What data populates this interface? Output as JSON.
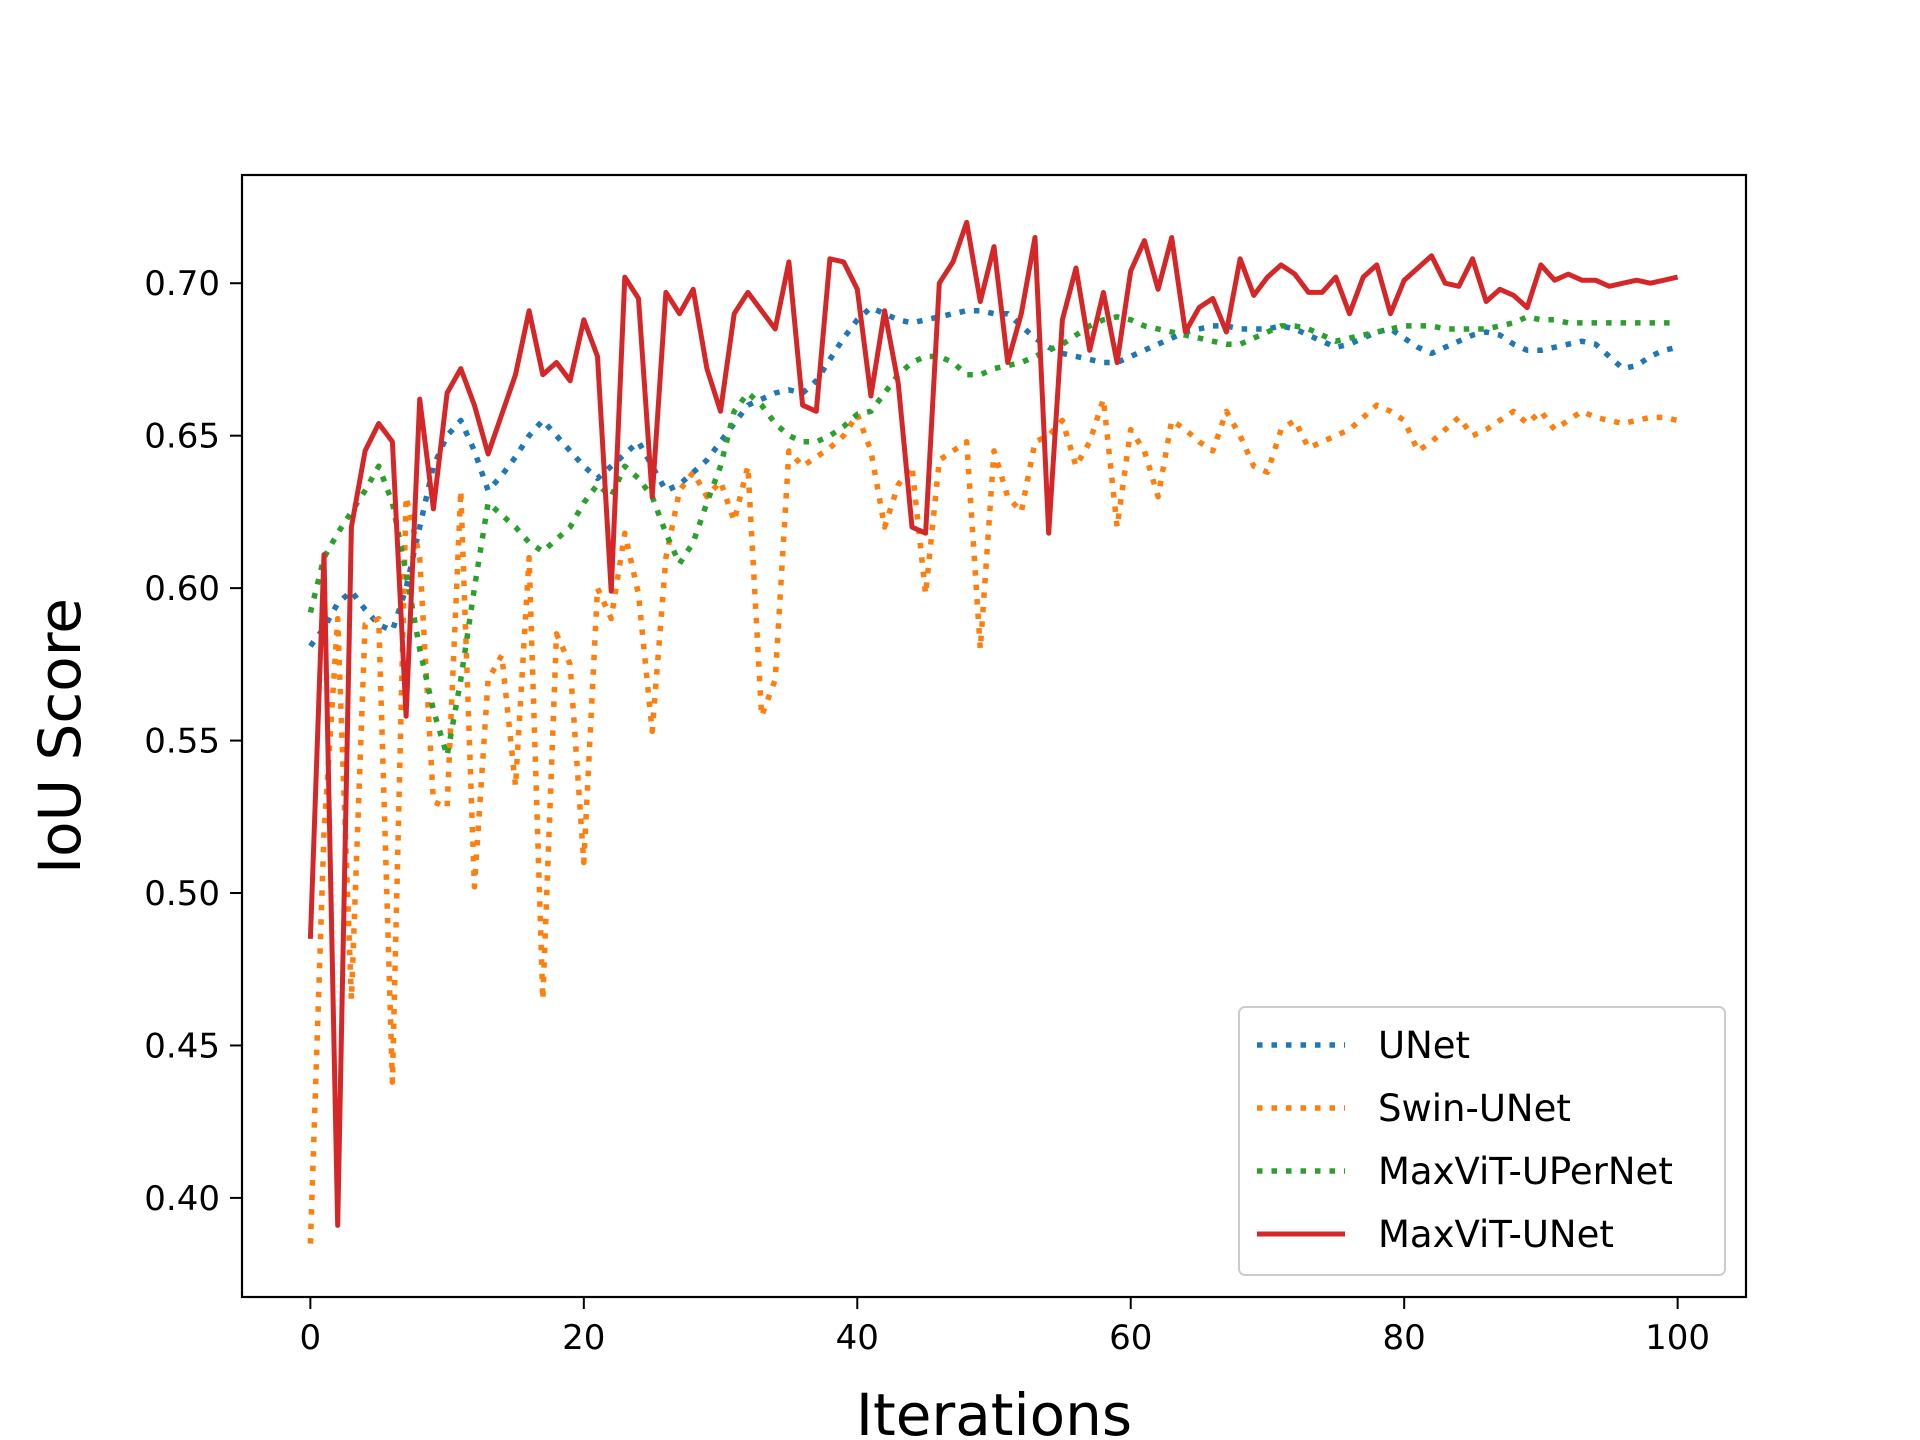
{
  "chart_data": {
    "type": "line",
    "title": "",
    "xlabel": "Iterations",
    "ylabel": "IoU Score",
    "xlim": [
      -5,
      105
    ],
    "ylim": [
      0.3675,
      0.7355
    ],
    "xticks": [
      0,
      20,
      40,
      60,
      80,
      100
    ],
    "yticks": [
      0.4,
      0.45,
      0.5,
      0.55,
      0.6,
      0.65,
      0.7
    ],
    "xtick_labels": [
      "0",
      "20",
      "40",
      "60",
      "80",
      "100"
    ],
    "ytick_labels": [
      "0.40",
      "0.45",
      "0.50",
      "0.55",
      "0.60",
      "0.65",
      "0.70"
    ],
    "grid": false,
    "legend_position": "lower-right",
    "series": [
      {
        "name": "UNet",
        "color": "#1f77b4",
        "style": "dotted",
        "x": [
          0,
          1,
          2,
          3,
          4,
          5,
          6,
          7,
          8,
          9,
          10,
          11,
          12,
          13,
          14,
          15,
          16,
          17,
          18,
          19,
          20,
          21,
          22,
          23,
          24,
          25,
          26,
          27,
          28,
          29,
          30,
          31,
          32,
          33,
          34,
          35,
          36,
          37,
          38,
          39,
          40,
          41,
          42,
          43,
          44,
          45,
          46,
          47,
          48,
          49,
          50,
          51,
          52,
          53,
          54,
          55,
          56,
          57,
          58,
          59,
          60,
          61,
          62,
          63,
          64,
          65,
          66,
          67,
          68,
          69,
          70,
          71,
          72,
          73,
          74,
          75,
          76,
          77,
          78,
          79,
          80,
          81,
          82,
          83,
          84,
          85,
          86,
          87,
          88,
          89,
          90,
          91,
          92,
          93,
          94,
          95,
          96,
          97,
          98,
          99,
          100
        ],
        "values": [
          0.581,
          0.587,
          0.595,
          0.599,
          0.593,
          0.588,
          0.586,
          0.6,
          0.62,
          0.64,
          0.65,
          0.655,
          0.645,
          0.632,
          0.637,
          0.643,
          0.65,
          0.655,
          0.65,
          0.645,
          0.64,
          0.636,
          0.64,
          0.644,
          0.648,
          0.64,
          0.632,
          0.634,
          0.638,
          0.642,
          0.648,
          0.654,
          0.66,
          0.662,
          0.664,
          0.665,
          0.664,
          0.668,
          0.675,
          0.682,
          0.688,
          0.692,
          0.69,
          0.688,
          0.687,
          0.688,
          0.689,
          0.69,
          0.691,
          0.691,
          0.69,
          0.69,
          0.686,
          0.682,
          0.679,
          0.677,
          0.676,
          0.675,
          0.674,
          0.674,
          0.676,
          0.678,
          0.68,
          0.682,
          0.684,
          0.685,
          0.686,
          0.686,
          0.685,
          0.685,
          0.685,
          0.686,
          0.685,
          0.683,
          0.681,
          0.679,
          0.68,
          0.682,
          0.684,
          0.685,
          0.682,
          0.679,
          0.677,
          0.679,
          0.681,
          0.683,
          0.684,
          0.683,
          0.68,
          0.678,
          0.678,
          0.679,
          0.68,
          0.681,
          0.68,
          0.676,
          0.672,
          0.673,
          0.676,
          0.678,
          0.679
        ]
      },
      {
        "name": "Swin-UNet",
        "color": "#ff7f0e",
        "style": "dotted",
        "x": [
          0,
          1,
          2,
          3,
          4,
          5,
          6,
          7,
          8,
          9,
          10,
          11,
          12,
          13,
          14,
          15,
          16,
          17,
          18,
          19,
          20,
          21,
          22,
          23,
          24,
          25,
          26,
          27,
          28,
          29,
          30,
          31,
          32,
          33,
          34,
          35,
          36,
          37,
          38,
          39,
          40,
          41,
          42,
          43,
          44,
          45,
          46,
          47,
          48,
          49,
          50,
          51,
          52,
          53,
          54,
          55,
          56,
          57,
          58,
          59,
          60,
          61,
          62,
          63,
          64,
          65,
          66,
          67,
          68,
          69,
          70,
          71,
          72,
          73,
          74,
          75,
          76,
          77,
          78,
          79,
          80,
          81,
          82,
          83,
          84,
          85,
          86,
          87,
          88,
          89,
          90,
          91,
          92,
          93,
          94,
          95,
          96,
          97,
          98,
          99,
          100
        ],
        "values": [
          0.385,
          0.52,
          0.59,
          0.465,
          0.588,
          0.59,
          0.438,
          0.63,
          0.61,
          0.53,
          0.528,
          0.632,
          0.502,
          0.57,
          0.578,
          0.535,
          0.61,
          0.465,
          0.585,
          0.575,
          0.51,
          0.6,
          0.59,
          0.618,
          0.598,
          0.553,
          0.61,
          0.632,
          0.638,
          0.63,
          0.635,
          0.622,
          0.64,
          0.558,
          0.57,
          0.645,
          0.64,
          0.643,
          0.646,
          0.65,
          0.657,
          0.645,
          0.62,
          0.634,
          0.64,
          0.598,
          0.642,
          0.645,
          0.648,
          0.58,
          0.645,
          0.63,
          0.625,
          0.648,
          0.65,
          0.655,
          0.64,
          0.648,
          0.662,
          0.62,
          0.652,
          0.645,
          0.63,
          0.655,
          0.652,
          0.648,
          0.645,
          0.658,
          0.65,
          0.64,
          0.638,
          0.652,
          0.655,
          0.646,
          0.648,
          0.65,
          0.652,
          0.656,
          0.66,
          0.658,
          0.655,
          0.645,
          0.648,
          0.652,
          0.656,
          0.65,
          0.652,
          0.655,
          0.658,
          0.654,
          0.658,
          0.652,
          0.655,
          0.658,
          0.656,
          0.655,
          0.654,
          0.655,
          0.656,
          0.656,
          0.655
        ]
      },
      {
        "name": "MaxViT-UPerNet",
        "color": "#2ca02c",
        "style": "dotted",
        "x": [
          0,
          1,
          2,
          3,
          4,
          5,
          6,
          7,
          8,
          9,
          10,
          11,
          12,
          13,
          14,
          15,
          16,
          17,
          18,
          19,
          20,
          21,
          22,
          23,
          24,
          25,
          26,
          27,
          28,
          29,
          30,
          31,
          32,
          33,
          34,
          35,
          36,
          37,
          38,
          39,
          40,
          41,
          42,
          43,
          44,
          45,
          46,
          47,
          48,
          49,
          50,
          51,
          52,
          53,
          54,
          55,
          56,
          57,
          58,
          59,
          60,
          61,
          62,
          63,
          64,
          65,
          66,
          67,
          68,
          69,
          70,
          71,
          72,
          73,
          74,
          75,
          76,
          77,
          78,
          79,
          80,
          81,
          82,
          83,
          84,
          85,
          86,
          87,
          88,
          89,
          90,
          91,
          92,
          93,
          94,
          95,
          96,
          97,
          98,
          99,
          100
        ],
        "values": [
          0.592,
          0.61,
          0.618,
          0.625,
          0.632,
          0.64,
          0.628,
          0.605,
          0.58,
          0.56,
          0.545,
          0.57,
          0.6,
          0.628,
          0.624,
          0.62,
          0.615,
          0.612,
          0.616,
          0.62,
          0.628,
          0.634,
          0.63,
          0.64,
          0.636,
          0.63,
          0.618,
          0.608,
          0.615,
          0.628,
          0.64,
          0.658,
          0.664,
          0.66,
          0.654,
          0.65,
          0.648,
          0.648,
          0.65,
          0.653,
          0.657,
          0.658,
          0.664,
          0.67,
          0.674,
          0.676,
          0.676,
          0.674,
          0.67,
          0.67,
          0.672,
          0.673,
          0.674,
          0.676,
          0.678,
          0.68,
          0.683,
          0.686,
          0.688,
          0.689,
          0.688,
          0.686,
          0.685,
          0.684,
          0.683,
          0.682,
          0.681,
          0.68,
          0.68,
          0.682,
          0.684,
          0.686,
          0.686,
          0.685,
          0.683,
          0.681,
          0.682,
          0.683,
          0.684,
          0.685,
          0.686,
          0.686,
          0.686,
          0.685,
          0.685,
          0.685,
          0.685,
          0.686,
          0.687,
          0.689,
          0.688,
          0.688,
          0.687,
          0.687,
          0.687,
          0.687,
          0.687,
          0.687,
          0.687,
          0.687,
          0.687
        ]
      },
      {
        "name": "MaxViT-UNet",
        "color": "#d62728",
        "style": "solid",
        "x": [
          0,
          1,
          2,
          3,
          4,
          5,
          6,
          7,
          8,
          9,
          10,
          11,
          12,
          13,
          14,
          15,
          16,
          17,
          18,
          19,
          20,
          21,
          22,
          23,
          24,
          25,
          26,
          27,
          28,
          29,
          30,
          31,
          32,
          33,
          34,
          35,
          36,
          37,
          38,
          39,
          40,
          41,
          42,
          43,
          44,
          45,
          46,
          47,
          48,
          49,
          50,
          51,
          52,
          53,
          54,
          55,
          56,
          57,
          58,
          59,
          60,
          61,
          62,
          63,
          64,
          65,
          66,
          67,
          68,
          69,
          70,
          71,
          72,
          73,
          74,
          75,
          76,
          77,
          78,
          79,
          80,
          81,
          82,
          83,
          84,
          85,
          86,
          87,
          88,
          89,
          90,
          91,
          92,
          93,
          94,
          95,
          96,
          97,
          98,
          99,
          100
        ],
        "values": [
          0.485,
          0.611,
          0.391,
          0.62,
          0.645,
          0.654,
          0.648,
          0.558,
          0.662,
          0.626,
          0.664,
          0.672,
          0.66,
          0.644,
          0.657,
          0.67,
          0.691,
          0.67,
          0.674,
          0.668,
          0.688,
          0.676,
          0.599,
          0.702,
          0.695,
          0.63,
          0.697,
          0.69,
          0.698,
          0.672,
          0.658,
          0.69,
          0.697,
          0.691,
          0.685,
          0.707,
          0.66,
          0.658,
          0.708,
          0.707,
          0.698,
          0.663,
          0.691,
          0.667,
          0.62,
          0.618,
          0.7,
          0.707,
          0.72,
          0.694,
          0.712,
          0.674,
          0.69,
          0.715,
          0.618,
          0.688,
          0.705,
          0.678,
          0.697,
          0.674,
          0.704,
          0.714,
          0.698,
          0.715,
          0.684,
          0.692,
          0.695,
          0.684,
          0.708,
          0.696,
          0.702,
          0.706,
          0.703,
          0.697,
          0.697,
          0.702,
          0.69,
          0.702,
          0.706,
          0.69,
          0.701,
          0.705,
          0.709,
          0.7,
          0.699,
          0.708,
          0.694,
          0.698,
          0.696,
          0.692,
          0.706,
          0.701,
          0.703,
          0.701,
          0.701,
          0.699,
          0.7,
          0.701,
          0.7,
          0.701,
          0.702
        ]
      }
    ]
  }
}
